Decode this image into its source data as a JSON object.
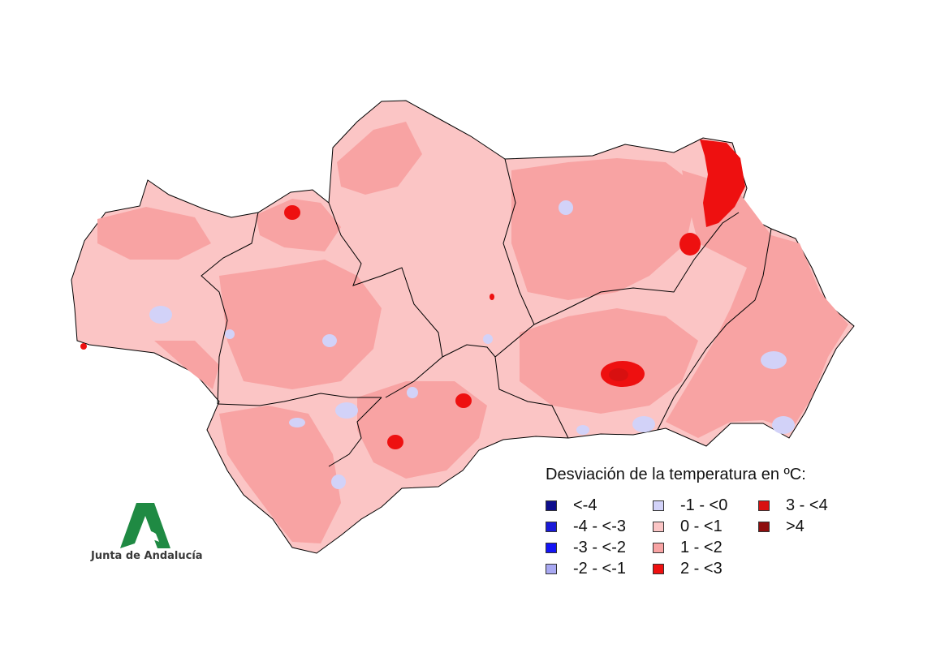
{
  "legend": {
    "title": "Desviación de la temperatura en ºC:",
    "items": [
      {
        "label": "<-4",
        "color": "#0d0d8c"
      },
      {
        "label": "-4 - <-3",
        "color": "#1a1ad8"
      },
      {
        "label": "-3 - <-2",
        "color": "#1414f5"
      },
      {
        "label": "-2 - <-1",
        "color": "#a8a8f2"
      },
      {
        "label": "-1 - <0",
        "color": "#d2d2f8"
      },
      {
        "label": "0 - <1",
        "color": "#fbc5c5"
      },
      {
        "label": "1 - <2",
        "color": "#f8a3a3"
      },
      {
        "label": "2 - <3",
        "color": "#ee1010"
      },
      {
        "label": "3 - <4",
        "color": "#d81010"
      },
      {
        "label": ">4",
        "color": "#8e0d0d"
      }
    ]
  },
  "logo": {
    "text": "Junta de Andalucía",
    "color": "#1f8a43"
  }
}
